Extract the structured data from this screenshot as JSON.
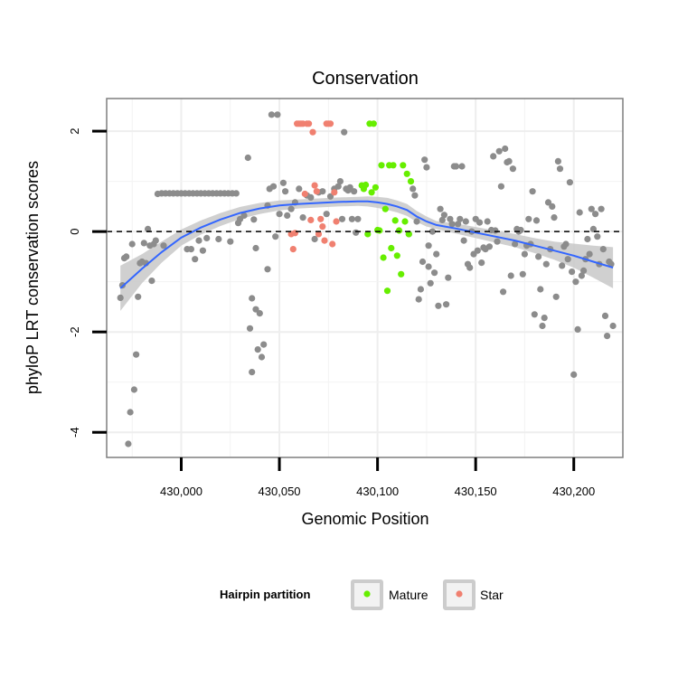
{
  "chart_data": {
    "type": "scatter",
    "title": "Conservation",
    "xlabel": "Genomic Position",
    "ylabel": "phyloP LRT conservation scores",
    "xlim": [
      429962,
      430225
    ],
    "ylim": [
      -4.5,
      2.65
    ],
    "xticks": [
      430000,
      430050,
      430100,
      430150,
      430200
    ],
    "xtick_labels": [
      "430,000",
      "430,050",
      "430,100",
      "430,150",
      "430,200"
    ],
    "yticks": [
      -4,
      -2,
      0,
      2
    ],
    "ytick_labels": [
      "-4",
      "-2",
      "0",
      "2"
    ],
    "grid": true,
    "reference_line": 0,
    "legend": {
      "title": "Hairpin partition",
      "placement": "bottom",
      "entries": [
        {
          "label": "Mature",
          "color": "#66ee00"
        },
        {
          "label": "Star",
          "color": "#f08070"
        }
      ]
    },
    "colors": {
      "other": "#8c8c8c",
      "mature": "#66ee00",
      "star": "#f08070",
      "trend": "#3366ff",
      "band": "#c8c8c8"
    },
    "series": [
      {
        "group": "other",
        "points": [
          [
            429969,
            -1.32
          ],
          [
            429970,
            -1.07
          ],
          [
            429971,
            -0.53
          ],
          [
            429972,
            -0.5
          ],
          [
            429973,
            -4.23
          ],
          [
            429974,
            -3.6
          ],
          [
            429975,
            -0.25
          ],
          [
            429976,
            -3.15
          ],
          [
            429977,
            -2.45
          ],
          [
            429978,
            -1.3
          ],
          [
            429979,
            -0.63
          ],
          [
            429980,
            -0.6
          ],
          [
            429981,
            -0.23
          ],
          [
            429982,
            -0.63
          ],
          [
            429983,
            0.05
          ],
          [
            429984,
            -0.28
          ],
          [
            429985,
            -0.98
          ],
          [
            429986,
            -0.25
          ],
          [
            429987,
            -0.18
          ],
          [
            429988,
            0.75
          ],
          [
            429990,
            0.76
          ],
          [
            429991,
            -0.28
          ],
          [
            429992,
            0.76
          ],
          [
            429994,
            0.76
          ],
          [
            429996,
            0.76
          ],
          [
            429998,
            0.76
          ],
          [
            430000,
            0.76
          ],
          [
            430002,
            0.76
          ],
          [
            430003,
            -0.35
          ],
          [
            430004,
            0.76
          ],
          [
            430005,
            -0.35
          ],
          [
            430006,
            0.76
          ],
          [
            430007,
            -0.55
          ],
          [
            430008,
            0.76
          ],
          [
            430009,
            -0.18
          ],
          [
            430010,
            0.76
          ],
          [
            430011,
            -0.38
          ],
          [
            430012,
            0.76
          ],
          [
            430013,
            -0.13
          ],
          [
            430014,
            0.76
          ],
          [
            430016,
            0.76
          ],
          [
            430018,
            0.76
          ],
          [
            430019,
            -0.15
          ],
          [
            430020,
            0.76
          ],
          [
            430022,
            0.76
          ],
          [
            430024,
            0.76
          ],
          [
            430025,
            -0.2
          ],
          [
            430026,
            0.76
          ],
          [
            430028,
            0.76
          ],
          [
            430029,
            0.17
          ],
          [
            430030,
            0.25
          ],
          [
            430032,
            0.32
          ],
          [
            430034,
            1.47
          ],
          [
            430035,
            -1.93
          ],
          [
            430036,
            -2.8
          ],
          [
            430036,
            -1.33
          ],
          [
            430037,
            0.24
          ],
          [
            430038,
            -1.55
          ],
          [
            430038,
            -0.33
          ],
          [
            430039,
            -2.35
          ],
          [
            430040,
            -1.63
          ],
          [
            430041,
            -2.5
          ],
          [
            430042,
            -2.25
          ],
          [
            430044,
            -0.75
          ],
          [
            430044,
            0.52
          ],
          [
            430045,
            0.85
          ],
          [
            430046,
            2.33
          ],
          [
            430047,
            0.9
          ],
          [
            430048,
            -0.1
          ],
          [
            430049,
            2.33
          ],
          [
            430050,
            0.35
          ],
          [
            430052,
            0.97
          ],
          [
            430053,
            0.8
          ],
          [
            430054,
            0.32
          ],
          [
            430056,
            0.45
          ],
          [
            430058,
            0.58
          ],
          [
            430060,
            0.85
          ],
          [
            430062,
            0.28
          ],
          [
            430064,
            0.72
          ],
          [
            430066,
            0.68
          ],
          [
            430068,
            -0.15
          ],
          [
            430070,
            0.78
          ],
          [
            430072,
            0.8
          ],
          [
            430074,
            0.35
          ],
          [
            430076,
            0.7
          ],
          [
            430078,
            0.85
          ],
          [
            430080,
            0.9
          ],
          [
            430081,
            1.0
          ],
          [
            430082,
            0.25
          ],
          [
            430083,
            1.98
          ],
          [
            430084,
            0.85
          ],
          [
            430085,
            0.82
          ],
          [
            430086,
            0.88
          ],
          [
            430087,
            0.25
          ],
          [
            430088,
            0.8
          ],
          [
            430089,
            -0.02
          ],
          [
            430090,
            0.25
          ],
          [
            430116,
            -0.05
          ],
          [
            430118,
            0.85
          ],
          [
            430119,
            0.72
          ],
          [
            430120,
            0.2
          ],
          [
            430121,
            -1.35
          ],
          [
            430122,
            -1.15
          ],
          [
            430123,
            -0.6
          ],
          [
            430124,
            1.43
          ],
          [
            430125,
            1.28
          ],
          [
            430126,
            -0.28
          ],
          [
            430126,
            -0.7
          ],
          [
            430127,
            -1.03
          ],
          [
            430128,
            0.0
          ],
          [
            430129,
            -0.82
          ],
          [
            430130,
            -0.45
          ],
          [
            430131,
            -1.48
          ],
          [
            430132,
            0.45
          ],
          [
            430133,
            0.23
          ],
          [
            430134,
            0.33
          ],
          [
            430135,
            -1.45
          ],
          [
            430136,
            -0.92
          ],
          [
            430137,
            0.25
          ],
          [
            430138,
            0.15
          ],
          [
            430139,
            1.3
          ],
          [
            430140,
            1.3
          ],
          [
            430141,
            0.15
          ],
          [
            430142,
            0.25
          ],
          [
            430143,
            1.3
          ],
          [
            430144,
            -0.18
          ],
          [
            430145,
            0.2
          ],
          [
            430146,
            -0.65
          ],
          [
            430147,
            -0.72
          ],
          [
            430148,
            0.0
          ],
          [
            430149,
            -0.45
          ],
          [
            430150,
            0.25
          ],
          [
            430151,
            -0.38
          ],
          [
            430152,
            0.18
          ],
          [
            430153,
            -0.62
          ],
          [
            430154,
            -0.32
          ],
          [
            430155,
            -0.35
          ],
          [
            430156,
            0.2
          ],
          [
            430157,
            -0.3
          ],
          [
            430158,
            0.03
          ],
          [
            430159,
            1.5
          ],
          [
            430160,
            0.02
          ],
          [
            430161,
            -0.2
          ],
          [
            430162,
            1.6
          ],
          [
            430163,
            0.9
          ],
          [
            430164,
            -1.2
          ],
          [
            430165,
            1.65
          ],
          [
            430166,
            1.38
          ],
          [
            430167,
            1.4
          ],
          [
            430168,
            -0.88
          ],
          [
            430169,
            1.25
          ],
          [
            430170,
            -0.25
          ],
          [
            430171,
            0.05
          ],
          [
            430172,
            0.0
          ],
          [
            430173,
            0.03
          ],
          [
            430174,
            -0.85
          ],
          [
            430175,
            -0.45
          ],
          [
            430176,
            -0.28
          ],
          [
            430177,
            0.25
          ],
          [
            430178,
            -0.25
          ],
          [
            430179,
            0.8
          ],
          [
            430180,
            -1.65
          ],
          [
            430181,
            0.22
          ],
          [
            430182,
            -0.5
          ],
          [
            430183,
            -1.15
          ],
          [
            430184,
            -1.88
          ],
          [
            430185,
            -1.72
          ],
          [
            430186,
            -0.65
          ],
          [
            430187,
            0.58
          ],
          [
            430188,
            -0.35
          ],
          [
            430189,
            0.5
          ],
          [
            430190,
            0.28
          ],
          [
            430191,
            -1.3
          ],
          [
            430192,
            1.4
          ],
          [
            430193,
            1.25
          ],
          [
            430194,
            -0.68
          ],
          [
            430195,
            -0.3
          ],
          [
            430196,
            -0.25
          ],
          [
            430197,
            -0.55
          ],
          [
            430198,
            0.98
          ],
          [
            430199,
            -0.8
          ],
          [
            430200,
            -2.85
          ],
          [
            430201,
            -1.0
          ],
          [
            430202,
            -1.95
          ],
          [
            430203,
            0.38
          ],
          [
            430204,
            -0.88
          ],
          [
            430205,
            -0.78
          ],
          [
            430206,
            -0.55
          ],
          [
            430207,
            -0.15
          ],
          [
            430208,
            -0.45
          ],
          [
            430209,
            0.45
          ],
          [
            430210,
            0.05
          ],
          [
            430211,
            0.35
          ],
          [
            430212,
            -0.1
          ],
          [
            430213,
            -0.65
          ],
          [
            430214,
            0.45
          ],
          [
            430215,
            -0.35
          ],
          [
            430216,
            -1.68
          ],
          [
            430217,
            -2.08
          ],
          [
            430218,
            -0.6
          ],
          [
            430219,
            -0.65
          ],
          [
            430220,
            -1.88
          ]
        ]
      },
      {
        "group": "star",
        "points": [
          [
            430056,
            -0.05
          ],
          [
            430057,
            -0.35
          ],
          [
            430058,
            -0.03
          ],
          [
            430059,
            2.15
          ],
          [
            430060,
            2.15
          ],
          [
            430061,
            2.15
          ],
          [
            430062,
            2.15
          ],
          [
            430063,
            0.75
          ],
          [
            430064,
            2.15
          ],
          [
            430065,
            2.15
          ],
          [
            430066,
            0.23
          ],
          [
            430067,
            1.98
          ],
          [
            430068,
            0.92
          ],
          [
            430069,
            0.8
          ],
          [
            430070,
            -0.05
          ],
          [
            430071,
            0.25
          ],
          [
            430072,
            0.1
          ],
          [
            430073,
            -0.18
          ],
          [
            430074,
            2.15
          ],
          [
            430075,
            2.15
          ],
          [
            430076,
            2.15
          ],
          [
            430077,
            -0.25
          ],
          [
            430078,
            0.78
          ],
          [
            430079,
            0.2
          ]
        ]
      },
      {
        "group": "mature",
        "points": [
          [
            430092,
            0.92
          ],
          [
            430093,
            0.85
          ],
          [
            430094,
            0.93
          ],
          [
            430095,
            -0.05
          ],
          [
            430096,
            2.15
          ],
          [
            430097,
            0.78
          ],
          [
            430098,
            2.15
          ],
          [
            430099,
            0.88
          ],
          [
            430100,
            0.03
          ],
          [
            430101,
            0.02
          ],
          [
            430102,
            1.32
          ],
          [
            430103,
            -0.52
          ],
          [
            430104,
            0.45
          ],
          [
            430105,
            -1.18
          ],
          [
            430106,
            1.32
          ],
          [
            430107,
            -0.33
          ],
          [
            430108,
            1.32
          ],
          [
            430109,
            0.22
          ],
          [
            430110,
            -0.48
          ],
          [
            430111,
            0.02
          ],
          [
            430112,
            -0.85
          ],
          [
            430113,
            1.32
          ],
          [
            430114,
            0.2
          ],
          [
            430115,
            1.15
          ],
          [
            430116,
            -0.05
          ],
          [
            430117,
            1.0
          ]
        ]
      }
    ],
    "trend": {
      "x": [
        429969,
        429980,
        429990,
        430000,
        430010,
        430020,
        430030,
        430040,
        430050,
        430060,
        430070,
        430080,
        430090,
        430095,
        430100,
        430105,
        430110,
        430115,
        430120,
        430125,
        430130,
        430140,
        430150,
        430160,
        430170,
        430180,
        430190,
        430200,
        430210,
        430220
      ],
      "y": [
        -1.13,
        -0.74,
        -0.41,
        -0.12,
        0.08,
        0.24,
        0.37,
        0.46,
        0.52,
        0.55,
        0.57,
        0.59,
        0.6,
        0.6,
        0.58,
        0.55,
        0.5,
        0.43,
        0.3,
        0.2,
        0.13,
        0.06,
        -0.02,
        -0.1,
        -0.18,
        -0.28,
        -0.38,
        -0.48,
        -0.6,
        -0.72
      ],
      "lower": [
        -1.58,
        -1.03,
        -0.62,
        -0.28,
        -0.06,
        0.11,
        0.25,
        0.35,
        0.42,
        0.46,
        0.48,
        0.5,
        0.51,
        0.5,
        0.47,
        0.43,
        0.38,
        0.31,
        0.19,
        0.1,
        0.05,
        -0.04,
        -0.13,
        -0.22,
        -0.31,
        -0.43,
        -0.56,
        -0.72,
        -0.92,
        -1.13
      ],
      "upper": [
        -0.68,
        -0.45,
        -0.2,
        0.04,
        0.22,
        0.37,
        0.49,
        0.57,
        0.62,
        0.64,
        0.66,
        0.68,
        0.69,
        0.7,
        0.69,
        0.67,
        0.62,
        0.55,
        0.41,
        0.3,
        0.21,
        0.16,
        0.09,
        0.02,
        -0.05,
        -0.13,
        -0.2,
        -0.24,
        -0.28,
        -0.31
      ]
    }
  }
}
